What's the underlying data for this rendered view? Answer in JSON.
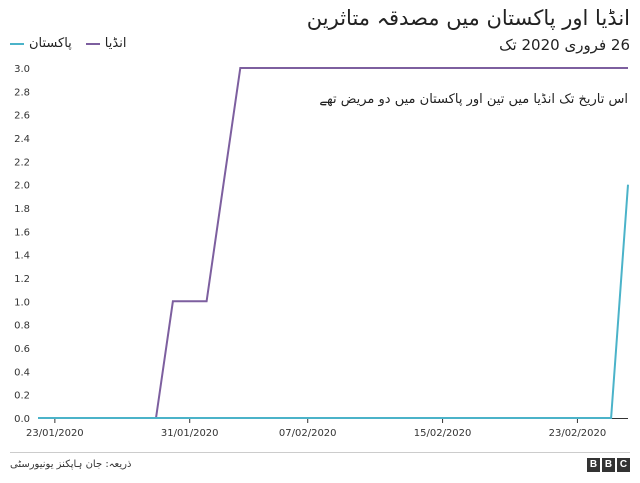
{
  "header": {
    "title": "انڈیا اور پاکستان میں مصدقہ متاثرین",
    "subtitle": "26 فروری 2020 تک"
  },
  "legend": [
    {
      "label": "پاکستان",
      "color": "#4bb3c9"
    },
    {
      "label": "انڈیا",
      "color": "#7d5f9f"
    }
  ],
  "annotation": "اس تاریخ تک انڈیا میں تین اور پاکستان میں دو مریض تھے",
  "footer": {
    "source": "ذریعہ: جان ہاپکنز یونیورسٹی",
    "logo_letters": [
      "B",
      "B",
      "C"
    ]
  },
  "chart_data": {
    "type": "line",
    "title": "انڈیا اور پاکستان میں مصدقہ متاثرین",
    "subtitle": "26 فروری 2020 تک",
    "x_tick_labels": [
      "23/01/2020",
      "31/01/2020",
      "07/02/2020",
      "15/02/2020",
      "23/02/2020"
    ],
    "x_range": [
      "2020-01-22",
      "2020-02-26"
    ],
    "ylim": [
      0,
      3.0
    ],
    "y_ticks": [
      0.0,
      0.2,
      0.4,
      0.6,
      0.8,
      1.0,
      1.2,
      1.4,
      1.6,
      1.8,
      2.0,
      2.2,
      2.4,
      2.6,
      2.8,
      3.0
    ],
    "grid": false,
    "legend_position": "top-left",
    "series": [
      {
        "name": "انڈیا",
        "color": "#7d5f9f",
        "points": [
          {
            "x": "2020-01-22",
            "y": 0
          },
          {
            "x": "2020-01-29",
            "y": 0
          },
          {
            "x": "2020-01-30",
            "y": 1
          },
          {
            "x": "2020-01-31",
            "y": 1
          },
          {
            "x": "2020-02-01",
            "y": 1
          },
          {
            "x": "2020-02-02",
            "y": 2
          },
          {
            "x": "2020-02-03",
            "y": 3
          },
          {
            "x": "2020-02-26",
            "y": 3
          }
        ]
      },
      {
        "name": "پاکستان",
        "color": "#4bb3c9",
        "points": [
          {
            "x": "2020-01-22",
            "y": 0
          },
          {
            "x": "2020-02-25",
            "y": 0
          },
          {
            "x": "2020-02-26",
            "y": 2
          }
        ]
      }
    ]
  }
}
